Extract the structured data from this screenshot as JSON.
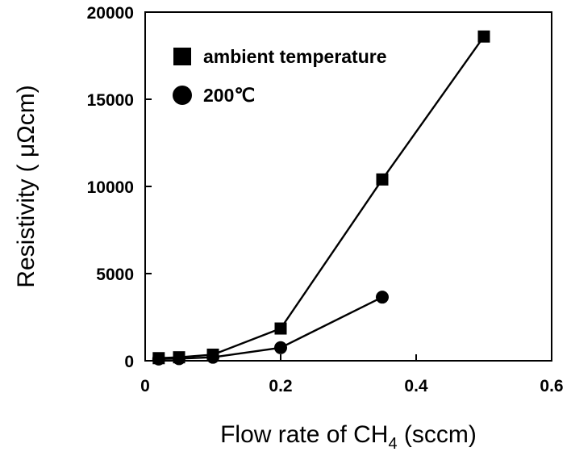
{
  "chart_data": {
    "type": "line",
    "xlabel": {
      "text": "Flow rate of CH",
      "sub": "4",
      "after": " (sccm)"
    },
    "ylabel": "Resistivity ( μΩcm)",
    "xlim": [
      0,
      0.6
    ],
    "ylim": [
      0,
      20000
    ],
    "xticks": [
      "0",
      "0.2",
      "0.4",
      "0.6"
    ],
    "yticks": [
      "0",
      "5000",
      "10000",
      "15000",
      "20000"
    ],
    "grid": false,
    "legend_position": "top-left",
    "series": [
      {
        "name": "ambient temperature",
        "marker": "square",
        "color": "#000000",
        "x": [
          0.02,
          0.05,
          0.1,
          0.2,
          0.35,
          0.5
        ],
        "y": [
          150,
          200,
          350,
          1850,
          10400,
          18600
        ]
      },
      {
        "name": "200℃",
        "marker": "circle",
        "color": "#000000",
        "x": [
          0.02,
          0.05,
          0.1,
          0.2,
          0.35
        ],
        "y": [
          100,
          120,
          200,
          750,
          3650
        ]
      }
    ]
  }
}
